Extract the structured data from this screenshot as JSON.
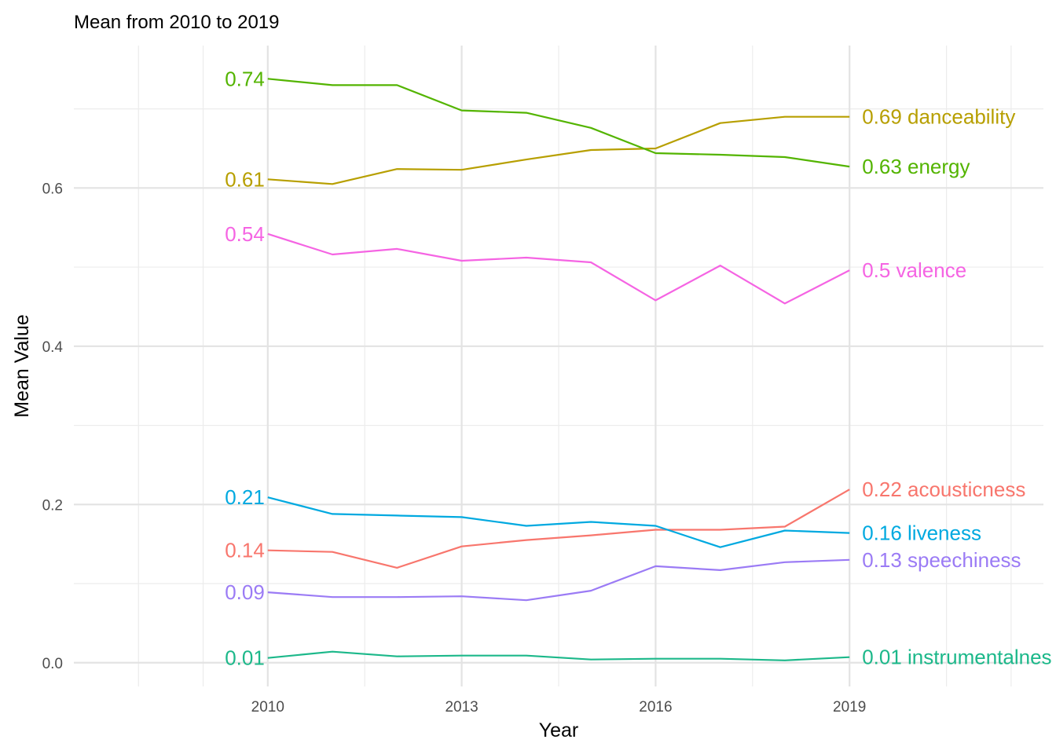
{
  "chart_data": {
    "type": "line",
    "title": "Mean from 2010 to 2019",
    "xlabel": "Year",
    "ylabel": "Mean Value",
    "x": [
      2010,
      2011,
      2012,
      2013,
      2014,
      2015,
      2016,
      2017,
      2018,
      2019
    ],
    "xticks": [
      "2010",
      "2013",
      "2016",
      "2019"
    ],
    "yticks": [
      "0.0",
      "0.2",
      "0.4",
      "0.6"
    ],
    "xlim": [
      2007,
      2022
    ],
    "ylim": [
      -0.03,
      0.78
    ],
    "grid": true,
    "legend": "none (direct labels at line ends)",
    "series": [
      {
        "name": "danceability",
        "color": "#B79F00",
        "start_label": "0.61",
        "end_label": "0.69 danceability",
        "values": [
          0.611,
          0.605,
          0.624,
          0.623,
          0.636,
          0.648,
          0.65,
          0.682,
          0.69,
          0.69
        ]
      },
      {
        "name": "energy",
        "color": "#53B400",
        "start_label": "0.74",
        "end_label": "0.63 energy",
        "values": [
          0.738,
          0.73,
          0.73,
          0.698,
          0.695,
          0.676,
          0.644,
          0.642,
          0.639,
          0.627
        ]
      },
      {
        "name": "valence",
        "color": "#F564E3",
        "start_label": "0.54",
        "end_label": "0.5 valence",
        "values": [
          0.542,
          0.516,
          0.523,
          0.508,
          0.512,
          0.506,
          0.458,
          0.502,
          0.454,
          0.496
        ]
      },
      {
        "name": "acousticness",
        "color": "#F8766D",
        "start_label": "0.14",
        "end_label": "0.22 acousticness",
        "values": [
          0.142,
          0.14,
          0.12,
          0.147,
          0.155,
          0.161,
          0.168,
          0.168,
          0.172,
          0.219
        ]
      },
      {
        "name": "liveness",
        "color": "#00A9E0",
        "start_label": "0.21",
        "end_label": "0.16 liveness",
        "values": [
          0.209,
          0.188,
          0.186,
          0.184,
          0.173,
          0.178,
          0.173,
          0.146,
          0.167,
          0.164
        ]
      },
      {
        "name": "speechiness",
        "color": "#9B7BF5",
        "start_label": "0.09",
        "end_label": "0.13 speechiness",
        "values": [
          0.089,
          0.083,
          0.083,
          0.084,
          0.079,
          0.091,
          0.122,
          0.117,
          0.127,
          0.13
        ]
      },
      {
        "name": "instrumentalness",
        "color": "#1CB88A",
        "start_label": "0.01",
        "end_label": "0.01 instrumentalnes",
        "values": [
          0.006,
          0.014,
          0.008,
          0.009,
          0.009,
          0.004,
          0.005,
          0.005,
          0.003,
          0.007
        ]
      }
    ]
  }
}
